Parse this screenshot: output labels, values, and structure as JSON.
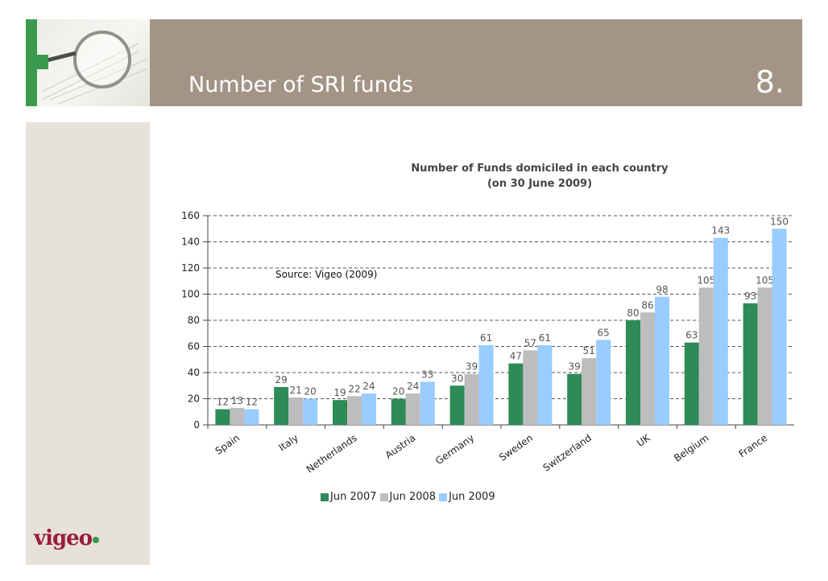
{
  "header": {
    "title": "Number of SRI funds",
    "slide_number": "8."
  },
  "logo": {
    "text": "vigeo"
  },
  "note": {
    "source": "Source: Vigeo (2009)"
  },
  "colors": {
    "header_bar": "#a39486",
    "accent_green": "#3a9a4d",
    "sidebar": "#e6e1d9"
  },
  "chart_data": {
    "type": "bar",
    "title": "Number of Funds domiciled in each country",
    "subtitle": "(on 30 June 2009)",
    "categories": [
      "Spain",
      "Italy",
      "Netherlands",
      "Austria",
      "Germany",
      "Sweden",
      "Switzerland",
      "UK",
      "Belgium",
      "France"
    ],
    "series": [
      {
        "name": "Jun 2007",
        "color": "#2e8b57",
        "values": [
          12,
          29,
          19,
          20,
          30,
          47,
          39,
          80,
          63,
          93
        ]
      },
      {
        "name": "Jun 2008",
        "color": "#bdbdbd",
        "values": [
          13,
          21,
          22,
          24,
          39,
          57,
          51,
          86,
          105,
          105
        ]
      },
      {
        "name": "Jun 2009",
        "color": "#99ccff",
        "values": [
          12,
          20,
          24,
          33,
          61,
          61,
          65,
          98,
          143,
          150
        ]
      }
    ],
    "ylim": [
      0,
      160
    ],
    "yticks": [
      0,
      20,
      40,
      60,
      80,
      100,
      120,
      140,
      160
    ],
    "grid": true,
    "legend_position": "bottom"
  }
}
